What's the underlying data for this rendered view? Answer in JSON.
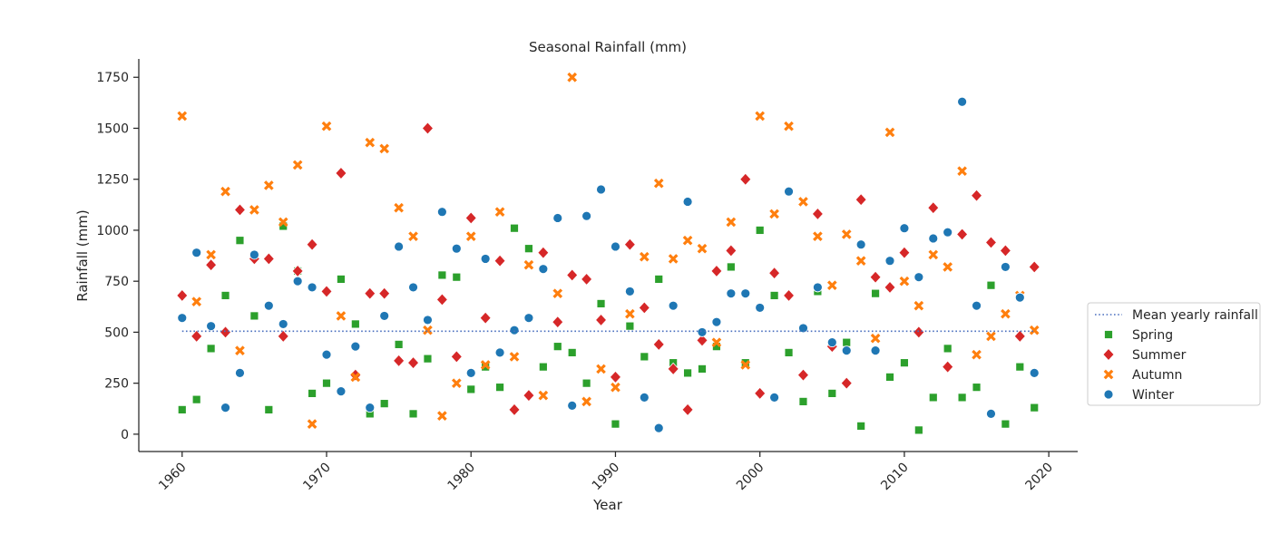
{
  "chart_data": {
    "type": "scatter",
    "title": "Seasonal Rainfall (mm)",
    "xlabel": "Year",
    "ylabel": "Rainfall (mm)",
    "xlim": [
      1957,
      2022
    ],
    "ylim": [
      -85,
      1840
    ],
    "x_ticks": [
      1960,
      1970,
      1980,
      1990,
      2000,
      2010,
      2020
    ],
    "y_ticks": [
      0,
      250,
      500,
      750,
      1000,
      1250,
      1500,
      1750
    ],
    "grid": false,
    "legend_position": "right-center",
    "reference_line": {
      "name": "Mean yearly rainfall",
      "value": 505,
      "color": "#4a6fbf",
      "style": "dotted"
    },
    "series": [
      {
        "name": "Spring",
        "marker": "square",
        "color": "#2ca02c",
        "x": [
          1960,
          1961,
          1962,
          1963,
          1964,
          1965,
          1966,
          1967,
          1968,
          1969,
          1970,
          1971,
          1972,
          1973,
          1974,
          1975,
          1976,
          1977,
          1978,
          1979,
          1980,
          1981,
          1982,
          1983,
          1984,
          1985,
          1986,
          1987,
          1988,
          1989,
          1990,
          1991,
          1992,
          1993,
          1994,
          1995,
          1996,
          1997,
          1998,
          1999,
          2000,
          2001,
          2002,
          2003,
          2004,
          2005,
          2006,
          2007,
          2008,
          2009,
          2010,
          2011,
          2012,
          2013,
          2014,
          2015,
          2016,
          2017,
          2018,
          2019
        ],
        "y": [
          120,
          170,
          420,
          680,
          950,
          580,
          120,
          1020,
          800,
          200,
          250,
          760,
          540,
          100,
          150,
          440,
          100,
          370,
          780,
          770,
          220,
          330,
          230,
          1010,
          910,
          330,
          430,
          400,
          250,
          640,
          50,
          530,
          380,
          760,
          350,
          300,
          320,
          430,
          820,
          350,
          1000,
          680,
          400,
          160,
          700,
          200,
          450,
          40,
          690,
          280,
          350,
          20,
          180,
          420,
          180,
          230,
          730,
          50,
          330,
          130
        ]
      },
      {
        "name": "Summer",
        "marker": "diamond",
        "color": "#d62728",
        "x": [
          1960,
          1961,
          1962,
          1963,
          1964,
          1965,
          1966,
          1967,
          1968,
          1969,
          1970,
          1971,
          1972,
          1973,
          1974,
          1975,
          1976,
          1977,
          1978,
          1979,
          1980,
          1981,
          1982,
          1983,
          1984,
          1985,
          1986,
          1987,
          1988,
          1989,
          1990,
          1991,
          1992,
          1993,
          1994,
          1995,
          1996,
          1997,
          1998,
          1999,
          2000,
          2001,
          2002,
          2003,
          2004,
          2005,
          2006,
          2007,
          2008,
          2009,
          2010,
          2011,
          2012,
          2013,
          2014,
          2015,
          2016,
          2017,
          2018,
          2019
        ],
        "y": [
          680,
          480,
          830,
          500,
          1100,
          860,
          860,
          480,
          800,
          930,
          700,
          1280,
          290,
          690,
          690,
          360,
          350,
          1500,
          660,
          380,
          1060,
          570,
          850,
          120,
          190,
          890,
          550,
          780,
          760,
          560,
          280,
          930,
          620,
          440,
          320,
          120,
          460,
          800,
          900,
          1250,
          200,
          790,
          680,
          290,
          1080,
          430,
          250,
          1150,
          770,
          720,
          890,
          500,
          1110,
          330,
          980,
          1170,
          940,
          900,
          480,
          820
        ]
      },
      {
        "name": "Autumn",
        "marker": "x",
        "color": "#ff7f0e",
        "x": [
          1960,
          1961,
          1962,
          1963,
          1964,
          1965,
          1966,
          1967,
          1968,
          1969,
          1970,
          1971,
          1972,
          1973,
          1974,
          1975,
          1976,
          1977,
          1978,
          1979,
          1980,
          1981,
          1982,
          1983,
          1984,
          1985,
          1986,
          1987,
          1988,
          1989,
          1990,
          1991,
          1992,
          1993,
          1994,
          1995,
          1996,
          1997,
          1998,
          1999,
          2000,
          2001,
          2002,
          2003,
          2004,
          2005,
          2006,
          2007,
          2008,
          2009,
          2010,
          2011,
          2012,
          2013,
          2014,
          2015,
          2016,
          2017,
          2018,
          2019
        ],
        "y": [
          1560,
          650,
          880,
          1190,
          410,
          1100,
          1220,
          1040,
          1320,
          50,
          1510,
          580,
          280,
          1430,
          1400,
          1110,
          970,
          510,
          90,
          250,
          970,
          340,
          1090,
          380,
          830,
          190,
          690,
          1750,
          160,
          320,
          230,
          590,
          870,
          1230,
          860,
          950,
          910,
          450,
          1040,
          340,
          1560,
          1080,
          1510,
          1140,
          970,
          730,
          980,
          850,
          470,
          1480,
          750,
          630,
          880,
          820,
          1290,
          390,
          480,
          590,
          680,
          510
        ]
      },
      {
        "name": "Winter",
        "marker": "circle",
        "color": "#1f77b4",
        "x": [
          1960,
          1961,
          1962,
          1963,
          1964,
          1965,
          1966,
          1967,
          1968,
          1969,
          1970,
          1971,
          1972,
          1973,
          1974,
          1975,
          1976,
          1977,
          1978,
          1979,
          1980,
          1981,
          1982,
          1983,
          1984,
          1985,
          1986,
          1987,
          1988,
          1989,
          1990,
          1991,
          1992,
          1993,
          1994,
          1995,
          1996,
          1997,
          1998,
          1999,
          2000,
          2001,
          2002,
          2003,
          2004,
          2005,
          2006,
          2007,
          2008,
          2009,
          2010,
          2011,
          2012,
          2013,
          2014,
          2015,
          2016,
          2017,
          2018,
          2019
        ],
        "y": [
          570,
          890,
          530,
          130,
          300,
          880,
          630,
          540,
          750,
          720,
          390,
          210,
          430,
          130,
          580,
          920,
          720,
          560,
          1090,
          910,
          300,
          860,
          400,
          510,
          570,
          810,
          1060,
          140,
          1070,
          1200,
          920,
          700,
          180,
          30,
          630,
          1140,
          500,
          550,
          690,
          690,
          620,
          180,
          1190,
          520,
          720,
          450,
          410,
          930,
          410,
          850,
          1010,
          770,
          960,
          990,
          1630,
          630,
          100,
          820,
          670,
          300
        ]
      }
    ]
  }
}
